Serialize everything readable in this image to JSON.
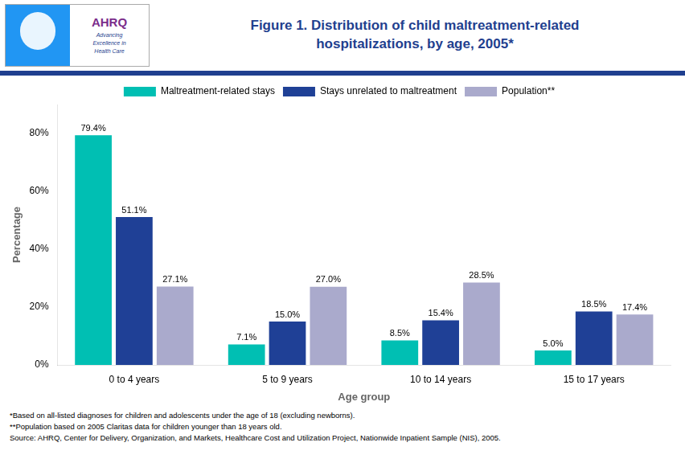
{
  "chart_data": {
    "type": "bar",
    "title": [
      "Figure 1.  Distribution of child maltreatment-related",
      "hospitalizations, by age, 2005*"
    ],
    "categories": [
      "0 to 4 years",
      "5 to 9 years",
      "10 to 14 years",
      "15 to 17 years"
    ],
    "series": [
      {
        "name": "Maltreatment-related stays",
        "color": "#00BFB3",
        "values": [
          79.4,
          7.1,
          8.5,
          5.0
        ],
        "value_labels": [
          "79.4%",
          "7.1%",
          "8.5%",
          "5.0%"
        ]
      },
      {
        "name": "Stays unrelated to maltreatment",
        "color": "#1F4096",
        "values": [
          51.1,
          15.0,
          15.4,
          18.5
        ],
        "value_labels": [
          "51.1%",
          "15.0%",
          "15.4%",
          "18.5%"
        ]
      },
      {
        "name": "Population**",
        "color": "#AAAACC",
        "values": [
          27.1,
          27.0,
          28.5,
          17.4
        ],
        "value_labels": [
          "27.1%",
          "27.0%",
          "28.5%",
          "17.4%"
        ]
      }
    ],
    "xlabel": "Age group",
    "ylabel": "Percentage",
    "ylim": [
      0,
      90
    ],
    "yticks": [
      {
        "value": 0,
        "label": "0%"
      },
      {
        "value": 20,
        "label": "20%"
      },
      {
        "value": 40,
        "label": "40%"
      },
      {
        "value": 60,
        "label": "60%"
      },
      {
        "value": 80,
        "label": "80%"
      }
    ],
    "grid": false,
    "legend": "top",
    "data_labels": true,
    "annotations": [
      "AHRQ",
      "Advancing\nExcellence in\nHealth Care",
      "*Based on all-listed diagnoses for children and adolescents under the age of 18 (excluding newborns).",
      "**Population based on 2005 Claritas data for children younger than 18 years old.",
      "Source: AHRQ, Center for Delivery, Organization, and Markets, Healthcare Cost and Utilization Project, Nationwide Inpatient Sample (NIS), 2005."
    ]
  }
}
